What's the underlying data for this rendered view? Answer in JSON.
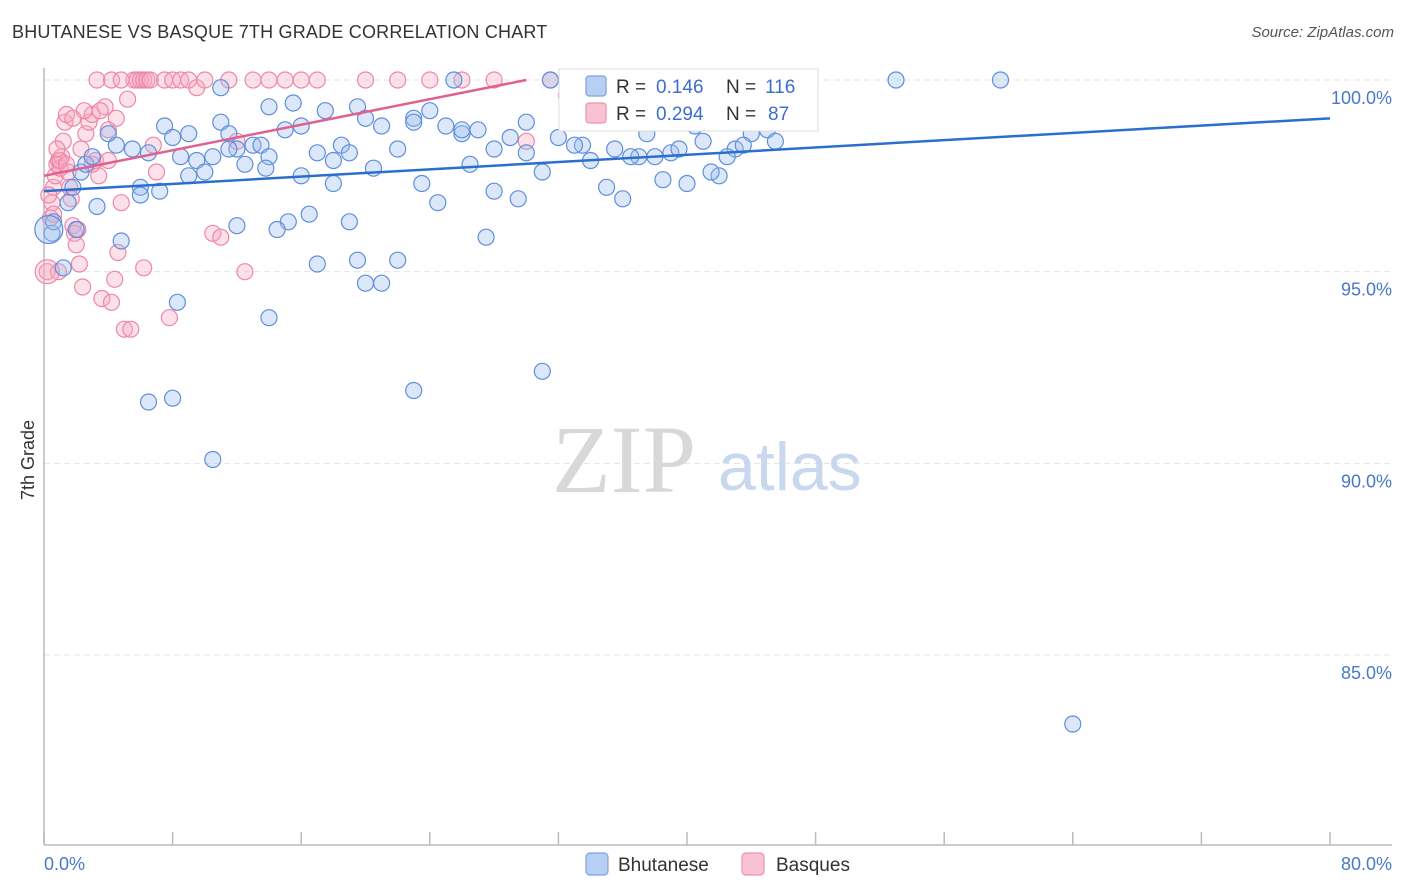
{
  "title": "BHUTANESE VS BASQUE 7TH GRADE CORRELATION CHART",
  "source": "Source: ZipAtlas.com",
  "watermark": {
    "zip": "ZIP",
    "atlas": "atlas"
  },
  "colors": {
    "blue": "#6f9de0",
    "pink": "#f08cab",
    "blue_line": "#2b6fce",
    "pink_line": "#e0608e",
    "grid": "#e4e4e4"
  },
  "chart_data": {
    "type": "scatter",
    "title": "BHUTANESE VS BASQUE 7TH GRADE CORRELATION CHART",
    "xlabel": "",
    "ylabel": "7th Grade",
    "xlim": [
      0,
      80
    ],
    "ylim": [
      80.5,
      100.8
    ],
    "x_tick_labels": [
      "0.0%",
      "80.0%"
    ],
    "y_ticks": [
      85,
      90,
      95,
      100
    ],
    "y_tick_labels": [
      "85.0%",
      "90.0%",
      "95.0%",
      "100.0%"
    ],
    "legend": [
      {
        "name": "Bhutanese",
        "r_label": "R =",
        "r": "0.146",
        "n_label": "N =",
        "n": "116"
      },
      {
        "name": "Basques",
        "r_label": "R =",
        "r": "0.294",
        "n_label": "N =",
        "n": "87"
      }
    ],
    "series": [
      {
        "name": "Bhutanese",
        "trend": {
          "x": [
            0,
            80
          ],
          "y": [
            97.1,
            99.0
          ]
        },
        "points": [
          [
            0.5,
            96.0
          ],
          [
            0.6,
            96.3
          ],
          [
            1.2,
            95.1
          ],
          [
            1.5,
            96.8
          ],
          [
            1.8,
            97.2
          ],
          [
            2.0,
            96.1
          ],
          [
            2.3,
            97.6
          ],
          [
            2.6,
            97.8
          ],
          [
            3.0,
            98.0
          ],
          [
            4.0,
            98.6
          ],
          [
            4.5,
            98.3
          ],
          [
            5.5,
            98.2
          ],
          [
            6.0,
            97.2
          ],
          [
            6.5,
            98.1
          ],
          [
            7.2,
            97.1
          ],
          [
            7.5,
            98.8
          ],
          [
            8.0,
            98.5
          ],
          [
            8.5,
            98.0
          ],
          [
            9.0,
            98.6
          ],
          [
            9.5,
            97.9
          ],
          [
            10.0,
            97.6
          ],
          [
            10.5,
            98.0
          ],
          [
            11.0,
            98.9
          ],
          [
            11.5,
            98.6
          ],
          [
            12.0,
            98.2
          ],
          [
            13.0,
            98.3
          ],
          [
            13.5,
            98.3
          ],
          [
            14.0,
            98.0
          ],
          [
            15.0,
            98.7
          ],
          [
            15.5,
            99.4
          ],
          [
            16.0,
            98.8
          ],
          [
            17.0,
            98.1
          ],
          [
            18.0,
            97.9
          ],
          [
            18.5,
            98.3
          ],
          [
            19.0,
            98.1
          ],
          [
            19.5,
            99.3
          ],
          [
            20.0,
            99.0
          ],
          [
            21.0,
            98.8
          ],
          [
            22.0,
            98.2
          ],
          [
            23.0,
            99.0
          ],
          [
            24.0,
            99.2
          ],
          [
            25.0,
            98.8
          ],
          [
            26.0,
            98.6
          ],
          [
            27.0,
            98.7
          ],
          [
            28.0,
            98.2
          ],
          [
            29.0,
            98.5
          ],
          [
            30.0,
            98.9
          ],
          [
            31.0,
            97.6
          ],
          [
            33.0,
            99.0
          ],
          [
            33.5,
            98.3
          ],
          [
            34.0,
            97.9
          ],
          [
            35.0,
            97.2
          ],
          [
            36.0,
            96.9
          ],
          [
            37.0,
            98.0
          ],
          [
            38.0,
            98.0
          ],
          [
            39.0,
            98.1
          ],
          [
            40.0,
            97.3
          ],
          [
            41.0,
            98.4
          ],
          [
            42.0,
            97.5
          ],
          [
            43.0,
            98.2
          ],
          [
            44.0,
            98.6
          ],
          [
            45.0,
            98.7
          ],
          [
            3.3,
            96.7
          ],
          [
            4.8,
            95.8
          ],
          [
            8.3,
            94.2
          ],
          [
            10.5,
            90.1
          ],
          [
            14.0,
            93.8
          ],
          [
            15.2,
            96.3
          ],
          [
            16.5,
            96.5
          ],
          [
            17.0,
            95.2
          ],
          [
            19.0,
            96.3
          ],
          [
            19.5,
            95.3
          ],
          [
            20.0,
            94.7
          ],
          [
            21.0,
            94.7
          ],
          [
            22.0,
            95.3
          ],
          [
            23.0,
            91.9
          ],
          [
            27.5,
            95.9
          ],
          [
            31.0,
            92.4
          ],
          [
            6.5,
            91.6
          ],
          [
            8.0,
            91.7
          ],
          [
            64.0,
            83.2
          ],
          [
            53.0,
            100.0
          ],
          [
            59.5,
            100.0
          ],
          [
            25.5,
            100.0
          ],
          [
            31.5,
            100.0
          ],
          [
            34.0,
            99.4
          ],
          [
            11.0,
            99.8
          ],
          [
            14.0,
            99.3
          ],
          [
            17.5,
            99.2
          ],
          [
            23.0,
            98.9
          ],
          [
            26.0,
            98.7
          ],
          [
            32.0,
            98.5
          ],
          [
            35.5,
            98.2
          ],
          [
            38.5,
            97.4
          ],
          [
            41.5,
            97.6
          ],
          [
            12.0,
            96.2
          ],
          [
            14.5,
            96.1
          ],
          [
            28.0,
            97.1
          ],
          [
            29.5,
            96.9
          ],
          [
            36.5,
            98.0
          ],
          [
            40.5,
            98.8
          ],
          [
            43.5,
            98.3
          ],
          [
            6.0,
            97.0
          ],
          [
            9.0,
            97.5
          ],
          [
            11.5,
            98.2
          ],
          [
            12.5,
            97.8
          ],
          [
            16.0,
            97.5
          ],
          [
            20.5,
            97.7
          ],
          [
            23.5,
            97.3
          ],
          [
            26.5,
            97.8
          ],
          [
            30.0,
            98.1
          ],
          [
            33.0,
            98.3
          ],
          [
            37.5,
            98.6
          ],
          [
            42.5,
            98.0
          ],
          [
            44.5,
            98.9
          ],
          [
            45.5,
            98.4
          ],
          [
            39.5,
            98.2
          ],
          [
            13.8,
            97.7
          ],
          [
            18.0,
            97.3
          ],
          [
            24.5,
            96.8
          ]
        ]
      },
      {
        "name": "Basques",
        "trend": {
          "x": [
            0,
            30
          ],
          "y": [
            97.5,
            100.0
          ]
        },
        "points": [
          [
            0.2,
            95.0
          ],
          [
            0.4,
            96.4
          ],
          [
            0.5,
            96.8
          ],
          [
            0.6,
            97.2
          ],
          [
            0.7,
            97.5
          ],
          [
            0.8,
            97.8
          ],
          [
            0.9,
            97.9
          ],
          [
            1.0,
            97.7
          ],
          [
            1.1,
            98.0
          ],
          [
            1.2,
            98.4
          ],
          [
            1.3,
            98.9
          ],
          [
            1.4,
            99.1
          ],
          [
            1.5,
            97.6
          ],
          [
            1.6,
            97.2
          ],
          [
            1.7,
            96.9
          ],
          [
            1.8,
            96.2
          ],
          [
            1.9,
            96.0
          ],
          [
            2.0,
            95.7
          ],
          [
            2.2,
            95.2
          ],
          [
            2.4,
            94.6
          ],
          [
            2.6,
            98.6
          ],
          [
            2.8,
            98.9
          ],
          [
            3.0,
            99.1
          ],
          [
            3.2,
            97.9
          ],
          [
            3.4,
            97.5
          ],
          [
            3.6,
            94.3
          ],
          [
            3.8,
            99.3
          ],
          [
            4.0,
            98.7
          ],
          [
            4.2,
            94.2
          ],
          [
            4.4,
            94.8
          ],
          [
            4.6,
            95.5
          ],
          [
            4.8,
            96.8
          ],
          [
            5.0,
            93.5
          ],
          [
            5.2,
            99.5
          ],
          [
            5.4,
            93.5
          ],
          [
            5.6,
            100.0
          ],
          [
            5.8,
            100.0
          ],
          [
            6.0,
            100.0
          ],
          [
            6.2,
            100.0
          ],
          [
            6.4,
            100.0
          ],
          [
            6.6,
            100.0
          ],
          [
            6.8,
            98.3
          ],
          [
            7.0,
            97.6
          ],
          [
            7.5,
            100.0
          ],
          [
            8.0,
            100.0
          ],
          [
            8.5,
            100.0
          ],
          [
            9.0,
            100.0
          ],
          [
            9.5,
            99.8
          ],
          [
            10.0,
            100.0
          ],
          [
            10.5,
            96.0
          ],
          [
            11.0,
            95.9
          ],
          [
            11.5,
            100.0
          ],
          [
            12.0,
            98.4
          ],
          [
            12.5,
            95.0
          ],
          [
            13.0,
            100.0
          ],
          [
            14.0,
            100.0
          ],
          [
            15.0,
            100.0
          ],
          [
            16.0,
            100.0
          ],
          [
            17.0,
            100.0
          ],
          [
            20.0,
            100.0
          ],
          [
            22.0,
            100.0
          ],
          [
            24.0,
            100.0
          ],
          [
            26.0,
            100.0
          ],
          [
            28.0,
            100.0
          ],
          [
            30.0,
            98.4
          ],
          [
            31.5,
            100.0
          ],
          [
            32.5,
            99.6
          ],
          [
            33.0,
            99.3
          ],
          [
            2.1,
            96.1
          ],
          [
            1.0,
            97.9
          ],
          [
            0.3,
            97.0
          ],
          [
            0.6,
            96.5
          ],
          [
            1.4,
            97.8
          ],
          [
            2.3,
            98.2
          ],
          [
            3.0,
            97.8
          ],
          [
            4.0,
            97.9
          ],
          [
            4.5,
            99.0
          ],
          [
            3.5,
            99.2
          ],
          [
            2.5,
            99.2
          ],
          [
            1.8,
            99.0
          ],
          [
            0.8,
            98.2
          ],
          [
            0.9,
            95.0
          ],
          [
            6.2,
            95.1
          ],
          [
            7.8,
            93.8
          ],
          [
            3.3,
            100.0
          ],
          [
            4.2,
            100.0
          ],
          [
            4.8,
            100.0
          ]
        ]
      }
    ]
  }
}
